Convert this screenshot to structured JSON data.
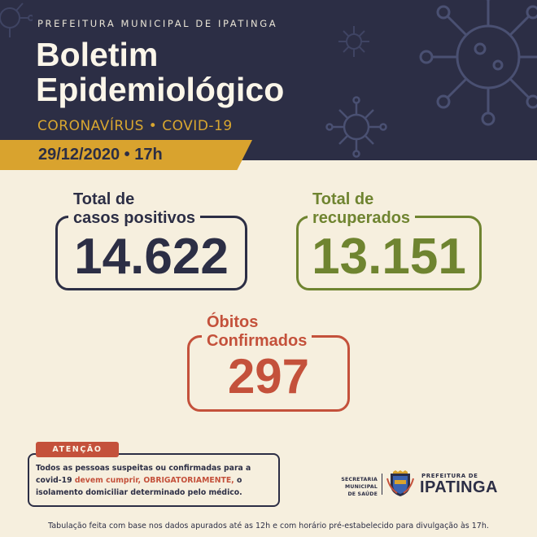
{
  "header": {
    "kicker": "PREFEITURA MUNICIPAL DE IPATINGA",
    "title_line1": "Boletim",
    "title_line2": "Epidemiológico",
    "subtitle": "CORONAVÍRUS • COVID-19",
    "date": "29/12/2020 • 17h"
  },
  "stats": {
    "positivos": {
      "label_line1": "Total de",
      "label_line2": "casos positivos",
      "value": "14.622"
    },
    "recuperados": {
      "label_line1": "Total de",
      "label_line2": "recuperados",
      "value": "13.151"
    },
    "obitos": {
      "label_line1": "Óbitos",
      "label_line2": "Confirmados",
      "value": "297"
    }
  },
  "attention": {
    "tag": "ATENÇÃO",
    "text_part1": "Todos as pessoas suspeitas ou confirmadas para a covid-19 ",
    "text_highlight": "devem cumprir, OBRIGATORIAMENTE,",
    "text_part2": " o isolamento domiciliar determinado pelo médico."
  },
  "footer": {
    "secretaria_line1": "SECRETARIA MUNICIPAL",
    "secretaria_line2": "DE SAÚDE",
    "prefeitura_small": "PREFEITURA DE",
    "prefeitura_big": "IPATINGA",
    "note": "Tabulação feita com base nos dados apurados até as 12h e com horário pré-estabelecido para divulgação às 17h."
  },
  "colors": {
    "navy": "#2c2e45",
    "cream": "#f6efde",
    "gold": "#d9a32e",
    "green": "#6f8430",
    "red": "#c4513b"
  },
  "icons": [
    "coronavirus-icon",
    "municipal-crest-icon"
  ]
}
